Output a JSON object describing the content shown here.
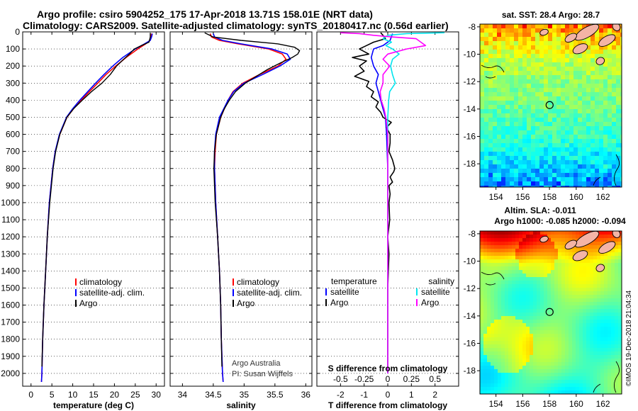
{
  "header": {
    "line1": "Argo profile: csiro 5904252_175 17-Apr-2018 13.71S 158.01E (NRT data)",
    "line2": "Climatology: CARS2009. Satellite-adjusted climatology: synTS_20180417.nc (0.56d earlier)"
  },
  "footer_stamp": "©IMOS 19-Dec-2018 21:04:34",
  "credit": {
    "line1": "Argo Australia",
    "line2": "PI: Susan Wijffels"
  },
  "colors": {
    "climatology": "#ff0000",
    "satellite": "#0000ff",
    "argo": "#000000",
    "sal_satellite": "#00e5ee",
    "sal_argo": "#ff00ff"
  },
  "chart_data": [
    {
      "type": "line",
      "name": "temperature-profile",
      "xlabel": "temperature (deg C)",
      "ylabel": "",
      "xlim": [
        -2,
        32
      ],
      "ylim": [
        2075,
        0
      ],
      "xticks": [
        0,
        5,
        10,
        15,
        20,
        25,
        30
      ],
      "xtick_labels": [
        "0",
        "5",
        "10",
        "15",
        "20",
        "25",
        "30"
      ],
      "yticks": [
        0,
        100,
        200,
        300,
        400,
        500,
        600,
        700,
        800,
        900,
        1000,
        1100,
        1200,
        1300,
        1400,
        1500,
        1600,
        1700,
        1800,
        1900,
        2000
      ],
      "legend": [
        "climatology",
        "satellite-adj. clim.",
        "Argo"
      ],
      "series": [
        {
          "name": "climatology",
          "depth": [
            10,
            30,
            50,
            70,
            100,
            150,
            200,
            250,
            300,
            350,
            400,
            450,
            500,
            600,
            700,
            800,
            1000,
            1200,
            1400,
            1600,
            1800,
            2000,
            2050
          ],
          "values": [
            28.9,
            28.7,
            28.5,
            27.5,
            25.6,
            22.8,
            20.3,
            18.0,
            16.0,
            14.0,
            12.0,
            10.2,
            8.6,
            6.9,
            5.8,
            5.2,
            4.4,
            3.9,
            3.5,
            3.1,
            2.8,
            2.6,
            2.5
          ]
        },
        {
          "name": "satellite-adj. clim.",
          "depth": [
            10,
            30,
            50,
            70,
            100,
            150,
            200,
            250,
            300,
            350,
            400,
            450,
            500,
            600,
            700,
            800,
            1000,
            1200,
            1400,
            1600,
            1800,
            2000,
            2050
          ],
          "values": [
            29.1,
            28.9,
            28.6,
            27.2,
            25.0,
            22.0,
            19.6,
            17.5,
            15.5,
            13.6,
            11.7,
            10.0,
            8.5,
            6.8,
            5.8,
            5.2,
            4.4,
            3.9,
            3.5,
            3.1,
            2.8,
            2.6,
            2.5
          ]
        },
        {
          "name": "Argo",
          "depth": [
            5,
            30,
            60,
            80,
            100,
            130,
            160,
            200,
            250,
            300,
            350,
            400,
            450,
            500,
            600,
            700,
            800,
            1000,
            1200,
            1400,
            1600,
            1800,
            1960
          ],
          "values": [
            28.6,
            28.6,
            28.3,
            26.5,
            24.8,
            23.6,
            22.2,
            20.5,
            19.0,
            17.0,
            14.5,
            12.3,
            10.2,
            8.6,
            6.9,
            5.9,
            5.3,
            4.5,
            3.9,
            3.5,
            3.1,
            2.8,
            2.6
          ]
        }
      ]
    },
    {
      "type": "line",
      "name": "salinity-profile",
      "xlabel": "salinity",
      "ylabel": "",
      "xlim": [
        33.8,
        36.1
      ],
      "ylim": [
        2075,
        0
      ],
      "xticks": [
        34,
        34.5,
        35,
        35.5,
        36
      ],
      "xtick_labels": [
        "34",
        "34.5",
        "35",
        "35.5",
        "36"
      ],
      "legend": [
        "climatology",
        "satellite-adj. clim.",
        "Argo"
      ],
      "series": [
        {
          "name": "climatology",
          "depth": [
            10,
            30,
            50,
            70,
            100,
            130,
            160,
            200,
            250,
            300,
            350,
            400,
            450,
            500,
            600,
            700,
            800,
            1000,
            1200,
            1400,
            1600,
            1800,
            2000,
            2050
          ],
          "values": [
            34.45,
            34.47,
            34.6,
            34.9,
            35.4,
            35.62,
            35.68,
            35.55,
            35.25,
            34.98,
            34.82,
            34.74,
            34.68,
            34.62,
            34.55,
            34.53,
            34.52,
            34.54,
            34.57,
            34.6,
            34.62,
            34.63,
            34.65,
            34.66
          ]
        },
        {
          "name": "satellite-adj. clim.",
          "depth": [
            10,
            30,
            50,
            70,
            100,
            130,
            160,
            200,
            250,
            300,
            350,
            400,
            450,
            500,
            600,
            700,
            800,
            1000,
            1200,
            1400,
            1600,
            1800,
            2000,
            2050
          ],
          "values": [
            34.5,
            34.52,
            34.65,
            34.95,
            35.45,
            35.7,
            35.75,
            35.58,
            35.3,
            35.0,
            34.83,
            34.74,
            34.67,
            34.6,
            34.54,
            34.52,
            34.52,
            34.54,
            34.57,
            34.6,
            34.62,
            34.63,
            34.65,
            34.66
          ]
        },
        {
          "name": "Argo",
          "depth": [
            5,
            30,
            50,
            70,
            90,
            110,
            130,
            150,
            180,
            220,
            260,
            300,
            350,
            400,
            450,
            500,
            600,
            700,
            800,
            1000,
            1200,
            1400,
            1600,
            1800,
            1960
          ],
          "values": [
            34.36,
            34.5,
            34.95,
            35.55,
            35.82,
            35.9,
            35.87,
            35.78,
            35.6,
            35.38,
            35.2,
            35.02,
            34.86,
            34.76,
            34.68,
            34.62,
            34.55,
            34.52,
            34.51,
            34.53,
            34.57,
            34.6,
            34.62,
            34.63,
            34.64
          ]
        }
      ]
    },
    {
      "type": "line",
      "name": "difference-profile",
      "xlabel": "T difference from climatology",
      "xlim": [
        -3,
        3
      ],
      "ylim": [
        2075,
        0
      ],
      "xticks": [
        -2,
        -1,
        0,
        1,
        2
      ],
      "xtick_labels": [
        "-2",
        "-1",
        "0",
        "1",
        "2"
      ],
      "sticks": [
        -0.5,
        -0.25,
        0,
        0.25,
        0.5
      ],
      "stick_labels": [
        "-0.5",
        "-0.25",
        "0",
        "0.25",
        "0.5"
      ],
      "s_axis_label": "S difference from climatology",
      "legend_temperature": {
        "title": "temperature",
        "items": [
          "satellite",
          "Argo"
        ]
      },
      "legend_salinity": {
        "title": "salinity",
        "items": [
          "satellite",
          "Argo"
        ]
      },
      "series": [
        {
          "name": "T satellite",
          "quantity": "T",
          "depth": [
            10,
            30,
            50,
            80,
            100,
            150,
            200,
            250,
            300,
            350,
            400,
            450,
            500,
            600,
            800,
            1000,
            1500,
            2000
          ],
          "values": [
            0.2,
            0.15,
            0.1,
            -0.2,
            -0.6,
            -0.7,
            -0.6,
            -0.4,
            -0.5,
            -0.4,
            -0.3,
            -0.2,
            -0.1,
            -0.05,
            0,
            0,
            0,
            0
          ]
        },
        {
          "name": "T Argo",
          "quantity": "T",
          "depth": [
            5,
            20,
            40,
            60,
            80,
            100,
            130,
            150,
            170,
            200,
            230,
            260,
            290,
            320,
            350,
            380,
            410,
            440,
            470,
            500,
            530,
            560,
            600,
            650,
            700,
            750,
            800,
            820,
            850,
            880,
            900,
            950,
            1000,
            1100,
            1200,
            1300,
            1500,
            1700,
            1900,
            1960
          ],
          "values": [
            -0.3,
            -0.2,
            -0.1,
            -0.6,
            -0.9,
            -1.2,
            -0.8,
            -1.5,
            -0.9,
            -1.2,
            -1.0,
            -1.4,
            -0.8,
            -0.9,
            -0.6,
            -0.7,
            -0.4,
            -0.5,
            -0.3,
            -0.2,
            0.15,
            -0.05,
            0.1,
            0.1,
            0.05,
            0.2,
            0.3,
            0.25,
            0.1,
            0.2,
            0.05,
            0.1,
            0.05,
            0.08,
            0.0,
            0.05,
            0.0,
            0.0,
            0.0,
            0.0
          ]
        },
        {
          "name": "S satellite",
          "quantity": "S",
          "depth": [
            5,
            10,
            20,
            40,
            60,
            80,
            100,
            130,
            160,
            200,
            250,
            300,
            350,
            400,
            500,
            700,
            1000,
            1500,
            2000
          ],
          "values": [
            0.6,
            0.2,
            0.0,
            -0.05,
            0.04,
            -0.02,
            0.05,
            0.12,
            0.05,
            0.03,
            0.05,
            0.08,
            0.02,
            0.01,
            0.0,
            0.0,
            0.0,
            0.0,
            0.0
          ]
        },
        {
          "name": "S Argo",
          "quantity": "S",
          "depth": [
            5,
            10,
            20,
            30,
            40,
            60,
            80,
            100,
            130,
            160,
            200,
            250,
            300,
            350,
            400,
            450,
            500,
            600,
            700,
            800,
            1000,
            1500,
            2000
          ],
          "values": [
            -0.5,
            -0.3,
            -0.15,
            0.05,
            0.3,
            0.35,
            0.4,
            0.2,
            0.0,
            -0.05,
            0.02,
            -0.05,
            -0.05,
            -0.08,
            -0.07,
            -0.04,
            -0.02,
            0.0,
            0.0,
            0.0,
            0.0,
            0.0,
            0.0
          ]
        }
      ]
    },
    {
      "type": "heatmap",
      "name": "sst-map",
      "title": "sat. SST: 28.4 Argo: 28.7",
      "xlim": [
        152.8,
        163.4
      ],
      "ylim": [
        -19.7,
        -7.8
      ],
      "xticks": [
        154,
        156,
        158,
        160,
        162
      ],
      "xtick_labels": [
        "154",
        "156",
        "158",
        "160",
        "162"
      ],
      "yticks": [
        -8,
        -10,
        -12,
        -14,
        -16,
        -18
      ],
      "ytick_labels": [
        "-8",
        "-10",
        "-12",
        "-14",
        "-16",
        "-18"
      ],
      "marker": {
        "lon": 158.01,
        "lat": -13.71
      }
    },
    {
      "type": "heatmap",
      "name": "sla-map",
      "title": "Altim. SLA: -0.011",
      "subtitle": "Argo h1000: -0.085 h2000: -0.094",
      "xlim": [
        152.8,
        163.4
      ],
      "ylim": [
        -19.7,
        -7.8
      ],
      "xticks": [
        154,
        156,
        158,
        160,
        162
      ],
      "xtick_labels": [
        "154",
        "156",
        "158",
        "160",
        "162"
      ],
      "yticks": [
        -8,
        -10,
        -12,
        -14,
        -16,
        -18
      ],
      "ytick_labels": [
        "-8",
        "-10",
        "-12",
        "-14",
        "-16",
        "-18"
      ],
      "marker": {
        "lon": 158.01,
        "lat": -13.71
      }
    }
  ]
}
